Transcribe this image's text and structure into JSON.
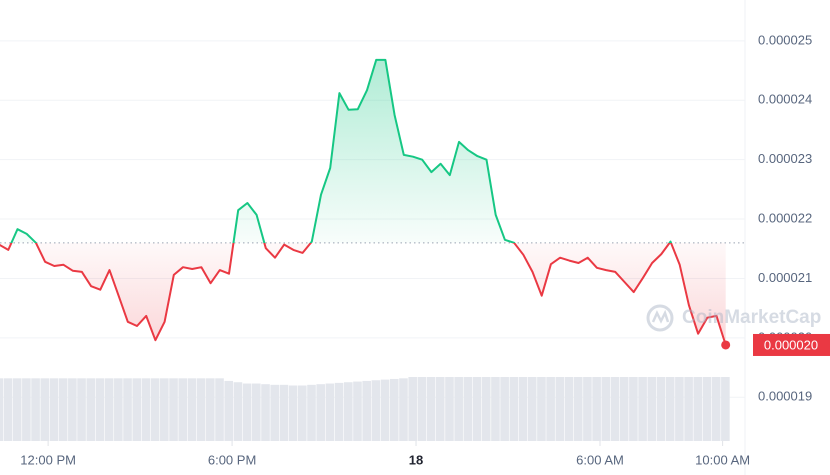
{
  "chart_data": {
    "type": "line",
    "x": [
      10.4,
      10.7,
      11,
      11.3,
      11.6,
      11.9,
      12.2,
      12.5,
      12.8,
      13.1,
      13.4,
      13.7,
      14,
      14.3,
      14.6,
      14.9,
      15.2,
      15.5,
      15.8,
      16.1,
      16.4,
      16.7,
      17,
      17.3,
      17.6,
      17.9,
      18.2,
      18.5,
      18.8,
      19.1,
      19.4,
      19.7,
      20,
      20.3,
      20.6,
      20.9,
      21.2,
      21.5,
      21.8,
      22.1,
      22.4,
      22.7,
      23,
      23.3,
      23.6,
      23.9,
      24.2,
      24.5,
      24.8,
      25.1,
      25.4,
      25.7,
      26,
      26.3,
      26.6,
      26.9,
      27.2,
      27.5,
      27.8,
      28.1,
      28.4,
      28.7,
      29,
      29.3,
      29.6,
      29.9,
      30.2,
      30.5,
      30.8,
      31.1,
      31.4,
      31.7,
      32,
      32.3,
      32.6,
      32.9,
      33.2,
      33.5,
      33.8,
      34.1
    ],
    "series": [
      {
        "up_color": "#16c784",
        "down_color": "#ea3943",
        "values": [
          2.157e-05,
          2.148e-05,
          2.183e-05,
          2.175e-05,
          2.16e-05,
          2.128e-05,
          2.121e-05,
          2.123e-05,
          2.113e-05,
          2.111e-05,
          2.087e-05,
          2.081e-05,
          2.114e-05,
          2.071e-05,
          2.027e-05,
          2.02e-05,
          2.037e-05,
          1.996e-05,
          2.027e-05,
          2.106e-05,
          2.119e-05,
          2.116e-05,
          2.119e-05,
          2.092e-05,
          2.114e-05,
          2.108e-05,
          2.215e-05,
          2.227e-05,
          2.207e-05,
          2.151e-05,
          2.135e-05,
          2.157e-05,
          2.148e-05,
          2.143e-05,
          2.162e-05,
          2.241e-05,
          2.286e-05,
          2.412e-05,
          2.384e-05,
          2.385e-05,
          2.417e-05,
          2.468e-05,
          2.468e-05,
          2.375e-05,
          2.308e-05,
          2.305e-05,
          2.3e-05,
          2.279e-05,
          2.293e-05,
          2.274e-05,
          2.33e-05,
          2.316e-05,
          2.306e-05,
          2.3e-05,
          2.207e-05,
          2.165e-05,
          2.16e-05,
          2.14e-05,
          2.111e-05,
          2.071e-05,
          2.124e-05,
          2.135e-05,
          2.13e-05,
          2.126e-05,
          2.135e-05,
          2.118e-05,
          2.114e-05,
          2.111e-05,
          2.094e-05,
          2.077e-05,
          2.101e-05,
          2.126e-05,
          2.141e-05,
          2.162e-05,
          2.123e-05,
          2.055e-05,
          2.007e-05,
          2.034e-05,
          2.037e-05,
          1.988e-05
        ],
        "last_value_label": "0.000020"
      }
    ],
    "volume": {
      "color": "#e3e6ec",
      "values": [
        96,
        96,
        96,
        96,
        96,
        96,
        96,
        96,
        96,
        96,
        96,
        96,
        96,
        96,
        96,
        96,
        96,
        96,
        96,
        96,
        96,
        96,
        96,
        96,
        96,
        92,
        90,
        88,
        88,
        87,
        86,
        86,
        85,
        85,
        86,
        87,
        88,
        89,
        90,
        91,
        92,
        93,
        94,
        95,
        96,
        98,
        98,
        98,
        98,
        98,
        98,
        98,
        98,
        98,
        98,
        98,
        98,
        98,
        98,
        98,
        98,
        98,
        98,
        98,
        98,
        98,
        98,
        98,
        98,
        98,
        98,
        98,
        98,
        98,
        98,
        98,
        98,
        98,
        98,
        98
      ]
    },
    "baseline": 2.16e-05,
    "xlim": [
      10.43,
      34.73
    ],
    "xticks": [
      {
        "value": 12,
        "label": "12:00 PM"
      },
      {
        "value": 18,
        "label": "6:00 PM"
      },
      {
        "value": 24,
        "label": "18"
      },
      {
        "value": 30,
        "label": "6:00 AM"
      },
      {
        "value": 34,
        "label": "10:00 AM"
      }
    ],
    "ylim": [
      1.828e-05,
      2.552e-05
    ],
    "yticks": [
      2.5e-05,
      2.4e-05,
      2.3e-05,
      2.2e-05,
      2.1e-05,
      {
        "value": 2e-05,
        "label": "0.000020"
      },
      1.9e-05
    ],
    "grid": true,
    "watermark": "CoinMarketCap"
  }
}
